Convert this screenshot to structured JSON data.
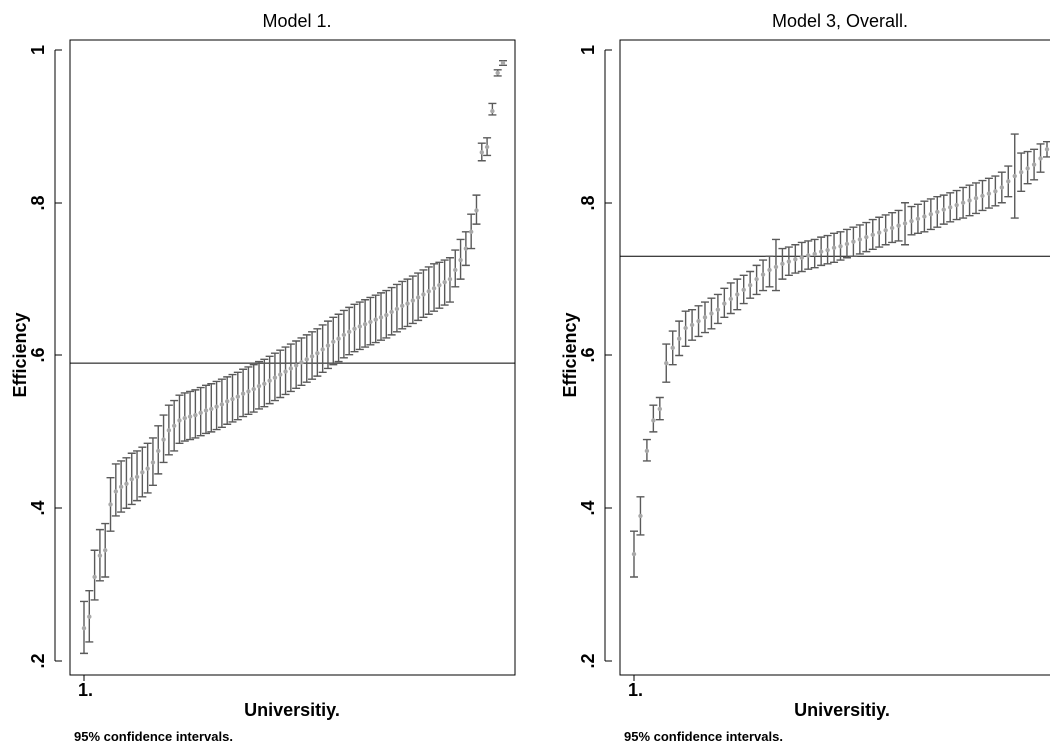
{
  "chart_data": [
    {
      "type": "scatter",
      "title": "Model 1.",
      "xlabel": "Universitiy.",
      "ylabel": "Efficiency",
      "x_tick_label": "1.",
      "note": "95% confidence intervals.",
      "ylim": [
        0.2,
        1.0
      ],
      "y_ticks": [
        0.2,
        0.4,
        0.6,
        0.8,
        1.0
      ],
      "y_tick_labels": [
        ".2",
        ".4",
        ".6",
        ".8",
        "1"
      ],
      "reference_line": 0.59,
      "grid": false,
      "colors": {
        "point": "#a8a8a8",
        "error_bar": "#5a5a5a",
        "line": "#000000"
      },
      "series": [
        {
          "estimates": [
            0.243,
            0.258,
            0.31,
            0.338,
            0.345,
            0.405,
            0.422,
            0.428,
            0.432,
            0.438,
            0.441,
            0.447,
            0.452,
            0.46,
            0.475,
            0.49,
            0.502,
            0.508,
            0.515,
            0.518,
            0.52,
            0.522,
            0.525,
            0.528,
            0.53,
            0.533,
            0.536,
            0.54,
            0.543,
            0.546,
            0.55,
            0.553,
            0.556,
            0.56,
            0.563,
            0.567,
            0.571,
            0.575,
            0.579,
            0.583,
            0.587,
            0.591,
            0.595,
            0.599,
            0.603,
            0.608,
            0.613,
            0.618,
            0.622,
            0.627,
            0.631,
            0.635,
            0.638,
            0.641,
            0.644,
            0.647,
            0.65,
            0.653,
            0.657,
            0.661,
            0.665,
            0.668,
            0.672,
            0.676,
            0.68,
            0.684,
            0.688,
            0.692,
            0.696,
            0.7,
            0.712,
            0.725,
            0.74,
            0.762,
            0.79,
            0.866,
            0.873,
            0.92,
            0.97,
            0.983
          ],
          "lower": [
            0.21,
            0.225,
            0.28,
            0.305,
            0.31,
            0.37,
            0.39,
            0.395,
            0.4,
            0.405,
            0.41,
            0.415,
            0.42,
            0.43,
            0.445,
            0.46,
            0.47,
            0.475,
            0.485,
            0.488,
            0.49,
            0.492,
            0.495,
            0.498,
            0.5,
            0.503,
            0.506,
            0.51,
            0.513,
            0.516,
            0.52,
            0.523,
            0.526,
            0.53,
            0.533,
            0.537,
            0.541,
            0.545,
            0.549,
            0.553,
            0.557,
            0.561,
            0.565,
            0.569,
            0.573,
            0.578,
            0.583,
            0.588,
            0.592,
            0.597,
            0.601,
            0.605,
            0.608,
            0.611,
            0.614,
            0.617,
            0.62,
            0.623,
            0.627,
            0.631,
            0.635,
            0.638,
            0.642,
            0.646,
            0.65,
            0.654,
            0.658,
            0.662,
            0.666,
            0.67,
            0.69,
            0.7,
            0.718,
            0.74,
            0.772,
            0.855,
            0.862,
            0.915,
            0.966,
            0.98
          ],
          "upper": [
            0.278,
            0.292,
            0.345,
            0.372,
            0.38,
            0.44,
            0.458,
            0.462,
            0.466,
            0.472,
            0.475,
            0.48,
            0.485,
            0.492,
            0.508,
            0.522,
            0.535,
            0.541,
            0.548,
            0.551,
            0.553,
            0.555,
            0.558,
            0.561,
            0.563,
            0.566,
            0.569,
            0.572,
            0.575,
            0.578,
            0.582,
            0.585,
            0.588,
            0.592,
            0.595,
            0.599,
            0.603,
            0.607,
            0.611,
            0.615,
            0.619,
            0.623,
            0.627,
            0.631,
            0.635,
            0.64,
            0.645,
            0.65,
            0.654,
            0.659,
            0.663,
            0.667,
            0.67,
            0.673,
            0.676,
            0.679,
            0.682,
            0.685,
            0.689,
            0.693,
            0.697,
            0.7,
            0.704,
            0.708,
            0.712,
            0.716,
            0.72,
            0.722,
            0.725,
            0.728,
            0.738,
            0.752,
            0.762,
            0.785,
            0.81,
            0.878,
            0.885,
            0.93,
            0.974,
            0.986
          ]
        }
      ]
    },
    {
      "type": "scatter",
      "title": "Model 3, Overall.",
      "xlabel": "Universitiy.",
      "ylabel": "Efficiency",
      "x_tick_label": "1.",
      "note": "95% confidence intervals.",
      "ylim": [
        0.2,
        1.0
      ],
      "y_ticks": [
        0.2,
        0.4,
        0.6,
        0.8,
        1.0
      ],
      "y_tick_labels": [
        ".2",
        ".4",
        ".6",
        ".8",
        "1"
      ],
      "reference_line": 0.73,
      "grid": false,
      "colors": {
        "point": "#a8a8a8",
        "error_bar": "#5a5a5a",
        "line": "#000000"
      },
      "series": [
        {
          "estimates": [
            0.34,
            0.39,
            0.475,
            0.515,
            0.53,
            0.59,
            0.61,
            0.622,
            0.636,
            0.64,
            0.645,
            0.65,
            0.655,
            0.66,
            0.668,
            0.674,
            0.68,
            0.686,
            0.692,
            0.7,
            0.706,
            0.712,
            0.716,
            0.72,
            0.723,
            0.726,
            0.728,
            0.731,
            0.733,
            0.736,
            0.738,
            0.741,
            0.743,
            0.746,
            0.749,
            0.752,
            0.755,
            0.758,
            0.761,
            0.764,
            0.767,
            0.77,
            0.773,
            0.776,
            0.779,
            0.782,
            0.785,
            0.788,
            0.791,
            0.794,
            0.797,
            0.8,
            0.803,
            0.806,
            0.809,
            0.812,
            0.815,
            0.82,
            0.828,
            0.835,
            0.84,
            0.845,
            0.85,
            0.858,
            0.87
          ],
          "lower": [
            0.31,
            0.365,
            0.462,
            0.5,
            0.516,
            0.565,
            0.588,
            0.6,
            0.612,
            0.62,
            0.625,
            0.63,
            0.635,
            0.642,
            0.65,
            0.655,
            0.66,
            0.668,
            0.675,
            0.68,
            0.685,
            0.69,
            0.685,
            0.7,
            0.705,
            0.708,
            0.71,
            0.713,
            0.715,
            0.718,
            0.72,
            0.722,
            0.725,
            0.728,
            0.73,
            0.733,
            0.736,
            0.739,
            0.742,
            0.745,
            0.748,
            0.75,
            0.745,
            0.758,
            0.76,
            0.762,
            0.765,
            0.768,
            0.772,
            0.775,
            0.778,
            0.78,
            0.783,
            0.786,
            0.79,
            0.793,
            0.796,
            0.8,
            0.808,
            0.78,
            0.815,
            0.825,
            0.83,
            0.84,
            0.86
          ],
          "upper": [
            0.37,
            0.415,
            0.49,
            0.535,
            0.545,
            0.615,
            0.632,
            0.645,
            0.658,
            0.66,
            0.665,
            0.67,
            0.675,
            0.68,
            0.688,
            0.695,
            0.7,
            0.705,
            0.71,
            0.718,
            0.725,
            0.73,
            0.752,
            0.74,
            0.742,
            0.745,
            0.748,
            0.75,
            0.752,
            0.755,
            0.757,
            0.76,
            0.762,
            0.765,
            0.768,
            0.771,
            0.774,
            0.778,
            0.781,
            0.784,
            0.787,
            0.79,
            0.8,
            0.795,
            0.798,
            0.802,
            0.805,
            0.808,
            0.81,
            0.813,
            0.816,
            0.82,
            0.823,
            0.826,
            0.829,
            0.832,
            0.835,
            0.84,
            0.848,
            0.89,
            0.865,
            0.867,
            0.87,
            0.877,
            0.88
          ]
        }
      ]
    }
  ]
}
